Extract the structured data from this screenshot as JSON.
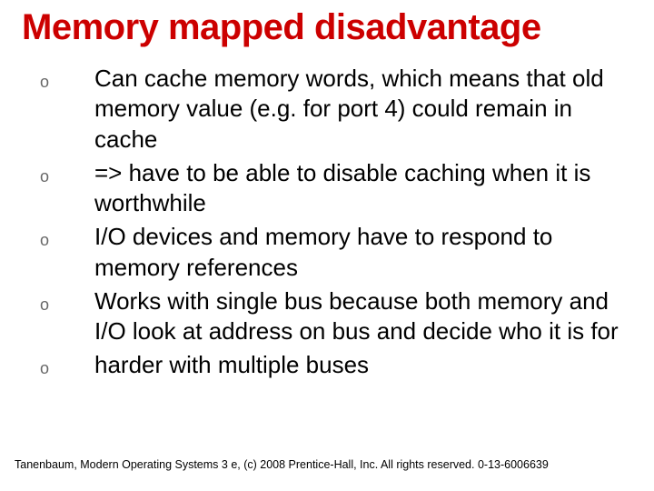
{
  "title": {
    "text": "Memory mapped disadvantage",
    "color": "#cc0000",
    "fontsize": 40
  },
  "bullets": {
    "marker": "o",
    "marker_color": "#666666",
    "body_color": "#000000",
    "body_fontsize": 26,
    "items": [
      "Can cache memory words, which means that old memory value (e.g. for port 4) could remain in cache",
      "=> have to be able to disable caching when it is worthwhile",
      "I/O devices and memory have to respond to memory references",
      "Works with single bus because both memory and I/O look at address on bus and decide who it is for",
      " harder with multiple buses"
    ]
  },
  "footer": "Tanenbaum, Modern Operating Systems 3 e, (c) 2008 Prentice-Hall, Inc. All rights reserved. 0-13-6006639",
  "background_color": "#ffffff"
}
